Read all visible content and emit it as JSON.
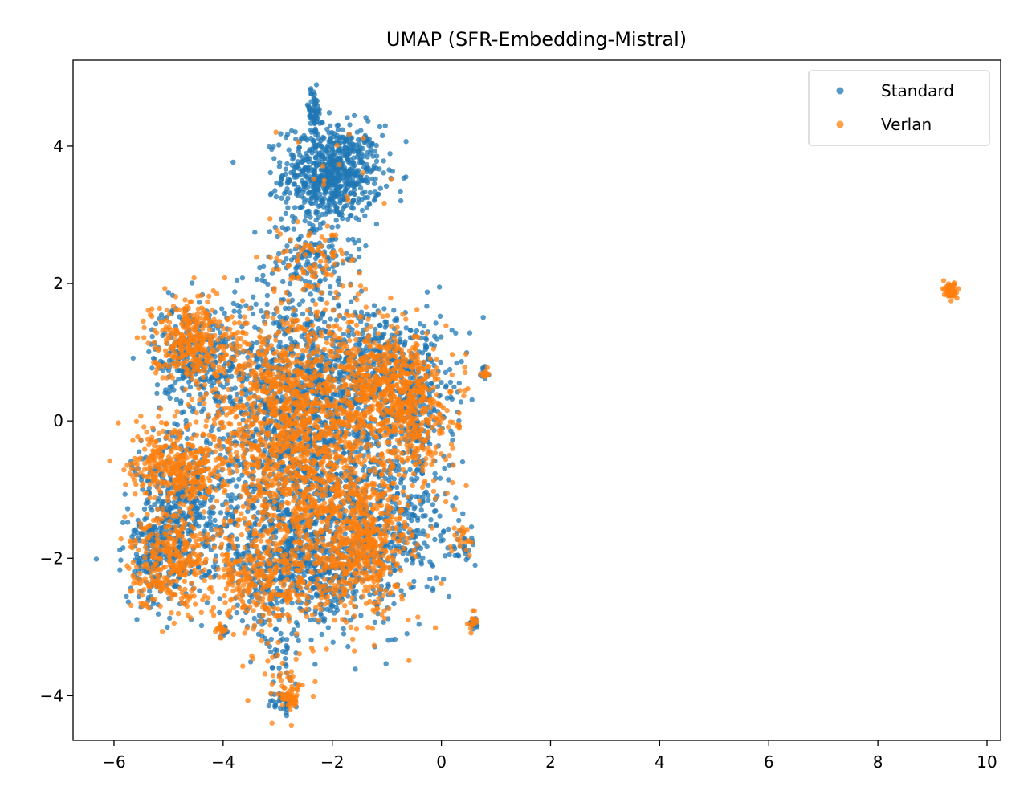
{
  "chart_data": {
    "type": "scatter",
    "title": "UMAP (SFR-Embedding-Mistral)",
    "xlabel": "",
    "ylabel": "",
    "xlim": [
      -6.75,
      10.25
    ],
    "ylim": [
      -4.65,
      5.25
    ],
    "xticks": [
      -6,
      -4,
      -2,
      0,
      2,
      4,
      6,
      8,
      10
    ],
    "xtick_labels": [
      "−6",
      "−4",
      "−2",
      "0",
      "2",
      "4",
      "6",
      "8",
      "10"
    ],
    "yticks": [
      -4,
      -2,
      0,
      2,
      4
    ],
    "ytick_labels": [
      "−4",
      "−2",
      "0",
      "2",
      "4"
    ],
    "grid": false,
    "legend_position": "top-right",
    "series": [
      {
        "name": "Standard",
        "color": "#1f77b4",
        "clusters": [
          {
            "cx": -2.0,
            "cy": 3.6,
            "sx": 0.45,
            "sy": 0.35,
            "n": 700
          },
          {
            "cx": -2.35,
            "cy": 4.5,
            "sx": 0.08,
            "sy": 0.18,
            "n": 60
          },
          {
            "cx": -2.4,
            "cy": 2.4,
            "sx": 0.4,
            "sy": 0.35,
            "n": 150
          },
          {
            "cx": -2.8,
            "cy": 0.6,
            "sx": 0.8,
            "sy": 0.7,
            "n": 700
          },
          {
            "cx": -4.6,
            "cy": 1.0,
            "sx": 0.35,
            "sy": 0.35,
            "n": 250
          },
          {
            "cx": -1.2,
            "cy": 0.7,
            "sx": 0.6,
            "sy": 0.5,
            "n": 400
          },
          {
            "cx": -0.5,
            "cy": 0.2,
            "sx": 0.35,
            "sy": 0.6,
            "n": 250
          },
          {
            "cx": -2.5,
            "cy": -0.8,
            "sx": 0.9,
            "sy": 0.8,
            "n": 900
          },
          {
            "cx": -4.7,
            "cy": -1.2,
            "sx": 0.45,
            "sy": 0.55,
            "n": 400
          },
          {
            "cx": -5.2,
            "cy": -2.0,
            "sx": 0.3,
            "sy": 0.35,
            "n": 200
          },
          {
            "cx": -2.5,
            "cy": -2.1,
            "sx": 0.8,
            "sy": 0.4,
            "n": 600
          },
          {
            "cx": -0.8,
            "cy": -1.5,
            "sx": 0.5,
            "sy": 0.6,
            "n": 300
          },
          {
            "cx": -2.95,
            "cy": -3.3,
            "sx": 0.2,
            "sy": 0.4,
            "n": 50
          },
          {
            "cx": -2.9,
            "cy": -4.1,
            "sx": 0.12,
            "sy": 0.08,
            "n": 40
          },
          {
            "cx": 0.6,
            "cy": -2.95,
            "sx": 0.04,
            "sy": 0.06,
            "n": 12
          },
          {
            "cx": 0.8,
            "cy": 0.68,
            "sx": 0.03,
            "sy": 0.05,
            "n": 10
          },
          {
            "cx": -4.0,
            "cy": -3.05,
            "sx": 0.06,
            "sy": 0.05,
            "n": 12
          },
          {
            "cx": 0.4,
            "cy": -1.8,
            "sx": 0.12,
            "sy": 0.2,
            "n": 25
          }
        ]
      },
      {
        "name": "Verlan",
        "color": "#ff7f0e",
        "clusters": [
          {
            "cx": -4.6,
            "cy": 1.2,
            "sx": 0.35,
            "sy": 0.3,
            "n": 300
          },
          {
            "cx": -2.8,
            "cy": 0.3,
            "sx": 0.8,
            "sy": 0.7,
            "n": 800
          },
          {
            "cx": -1.0,
            "cy": 0.5,
            "sx": 0.45,
            "sy": 0.4,
            "n": 450
          },
          {
            "cx": -0.4,
            "cy": 0.0,
            "sx": 0.3,
            "sy": 0.5,
            "n": 200
          },
          {
            "cx": -5.1,
            "cy": -0.6,
            "sx": 0.3,
            "sy": 0.3,
            "n": 200
          },
          {
            "cx": -4.5,
            "cy": -0.7,
            "sx": 0.25,
            "sy": 0.25,
            "n": 150
          },
          {
            "cx": -2.3,
            "cy": -1.0,
            "sx": 0.9,
            "sy": 0.8,
            "n": 900
          },
          {
            "cx": -1.4,
            "cy": -1.9,
            "sx": 0.4,
            "sy": 0.45,
            "n": 400
          },
          {
            "cx": -5.0,
            "cy": -2.0,
            "sx": 0.35,
            "sy": 0.35,
            "n": 300
          },
          {
            "cx": -3.3,
            "cy": -2.3,
            "sx": 0.6,
            "sy": 0.4,
            "n": 300
          },
          {
            "cx": -2.4,
            "cy": 2.2,
            "sx": 0.4,
            "sy": 0.3,
            "n": 100
          },
          {
            "cx": -2.8,
            "cy": -3.6,
            "sx": 0.3,
            "sy": 0.35,
            "n": 40
          },
          {
            "cx": -2.8,
            "cy": -4.05,
            "sx": 0.08,
            "sy": 0.1,
            "n": 40
          },
          {
            "cx": 9.35,
            "cy": 1.9,
            "sx": 0.06,
            "sy": 0.06,
            "n": 60
          },
          {
            "cx": 0.6,
            "cy": -2.9,
            "sx": 0.04,
            "sy": 0.08,
            "n": 15
          },
          {
            "cx": 0.8,
            "cy": 0.68,
            "sx": 0.03,
            "sy": 0.04,
            "n": 12
          },
          {
            "cx": -4.05,
            "cy": -3.05,
            "sx": 0.06,
            "sy": 0.06,
            "n": 15
          },
          {
            "cx": -1.9,
            "cy": 3.6,
            "sx": 0.4,
            "sy": 0.3,
            "n": 15
          },
          {
            "cx": 0.4,
            "cy": -1.7,
            "sx": 0.12,
            "sy": 0.15,
            "n": 20
          },
          {
            "cx": 0.3,
            "cy": -0.05,
            "sx": 0.04,
            "sy": 0.03,
            "n": 5
          }
        ]
      }
    ]
  }
}
